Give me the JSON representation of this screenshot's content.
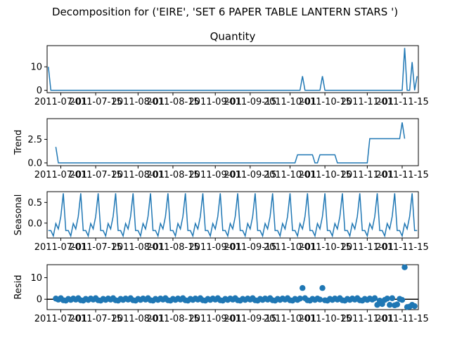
{
  "figure": {
    "suptitle": "Decomposition for ('EIRE', 'SET 6 PAPER TABLE LANTERN STARS ')"
  },
  "chart_data": [
    {
      "type": "line",
      "name": "observed",
      "title": "Quantity",
      "ylabel": "",
      "x_range": [
        -0.5,
        148.5
      ],
      "ylim": [
        -1,
        19
      ],
      "yticks": [
        0,
        10
      ],
      "x_tick_labels": [
        "2011-07-01",
        "2011-07-15",
        "2011-08-01",
        "2011-08-15",
        "2011-09-01",
        "2011-09-15",
        "2011-10-01",
        "2011-10-15",
        "2011-11-01",
        "2011-11-15"
      ],
      "x_tick_positions": [
        5,
        19,
        36,
        50,
        67,
        81,
        97,
        111,
        128,
        142
      ],
      "spikes": [
        [
          0,
          10
        ],
        [
          102,
          6
        ],
        [
          110,
          6
        ],
        [
          143,
          18
        ],
        [
          146,
          12
        ],
        [
          148,
          6
        ]
      ]
    },
    {
      "type": "line",
      "name": "trend",
      "title": "",
      "ylabel": "Trend",
      "x_range": [
        -0.5,
        148.5
      ],
      "ylim": [
        -0.3,
        4.7
      ],
      "yticks": [
        0.0,
        2.5
      ],
      "ytick_labels": [
        "0.0",
        "2.5"
      ],
      "x_tick_labels": [
        "2011-07-01",
        "2011-07-15",
        "2011-08-01",
        "2011-08-15",
        "2011-09-01",
        "2011-09-15",
        "2011-10-01",
        "2011-10-15",
        "2011-11-01",
        "2011-11-15"
      ],
      "x_tick_positions": [
        5,
        19,
        36,
        50,
        67,
        81,
        97,
        111,
        128,
        142
      ],
      "points": [
        [
          3,
          1.7
        ],
        [
          4,
          0
        ],
        [
          99,
          0
        ],
        [
          100,
          0.86
        ],
        [
          106,
          0.86
        ],
        [
          107,
          0
        ],
        [
          108,
          0
        ],
        [
          109,
          0.86
        ],
        [
          115,
          0.86
        ],
        [
          116,
          0
        ],
        [
          128,
          0
        ],
        [
          129,
          2.57
        ],
        [
          141,
          2.57
        ],
        [
          142,
          4.3
        ],
        [
          143,
          2.57
        ]
      ]
    },
    {
      "type": "line",
      "name": "seasonal",
      "title": "",
      "ylabel": "Seasonal",
      "x_range": [
        -0.5,
        148.5
      ],
      "ylim": [
        -0.36,
        0.76
      ],
      "yticks": [
        0.0,
        0.5
      ],
      "ytick_labels": [
        "0.0",
        "0.5"
      ],
      "x_tick_labels": [
        "2011-07-01",
        "2011-07-15",
        "2011-08-01",
        "2011-08-15",
        "2011-09-01",
        "2011-09-15",
        "2011-10-01",
        "2011-10-15",
        "2011-11-01",
        "2011-11-15"
      ],
      "x_tick_positions": [
        5,
        19,
        36,
        50,
        67,
        81,
        97,
        111,
        128,
        142
      ],
      "period": 7,
      "pattern": [
        -0.18,
        -0.18,
        -0.31,
        -0.01,
        -0.14,
        0.16,
        0.72
      ]
    },
    {
      "type": "scatter",
      "name": "resid",
      "title": "",
      "ylabel": "Resid",
      "x_range": [
        -0.5,
        148.5
      ],
      "ylim": [
        -4.8,
        16
      ],
      "yticks": [
        0,
        10
      ],
      "x_tick_labels": [
        "2011-07-01",
        "2011-07-15",
        "2011-08-01",
        "2011-08-15",
        "2011-09-01",
        "2011-09-15",
        "2011-10-01",
        "2011-10-15",
        "2011-11-01",
        "2011-11-15"
      ],
      "x_tick_positions": [
        5,
        19,
        36,
        50,
        67,
        81,
        97,
        111,
        128,
        142
      ],
      "outliers": [
        [
          102,
          5.2
        ],
        [
          110,
          5.2
        ],
        [
          143,
          14.8
        ],
        [
          132,
          -2.6
        ],
        [
          134,
          -2.2
        ],
        [
          137,
          -2.6
        ],
        [
          139,
          -2.8
        ],
        [
          140,
          -2.4
        ],
        [
          144,
          -3.6
        ],
        [
          145,
          -3.4
        ],
        [
          146,
          -2.6
        ],
        [
          147,
          -3.2
        ]
      ],
      "x_first": 3,
      "x_last": 147,
      "baseline_pattern": [
        -0.8,
        0.2,
        -0.4,
        0.4,
        -0.2,
        0.6,
        -0.6
      ]
    }
  ]
}
